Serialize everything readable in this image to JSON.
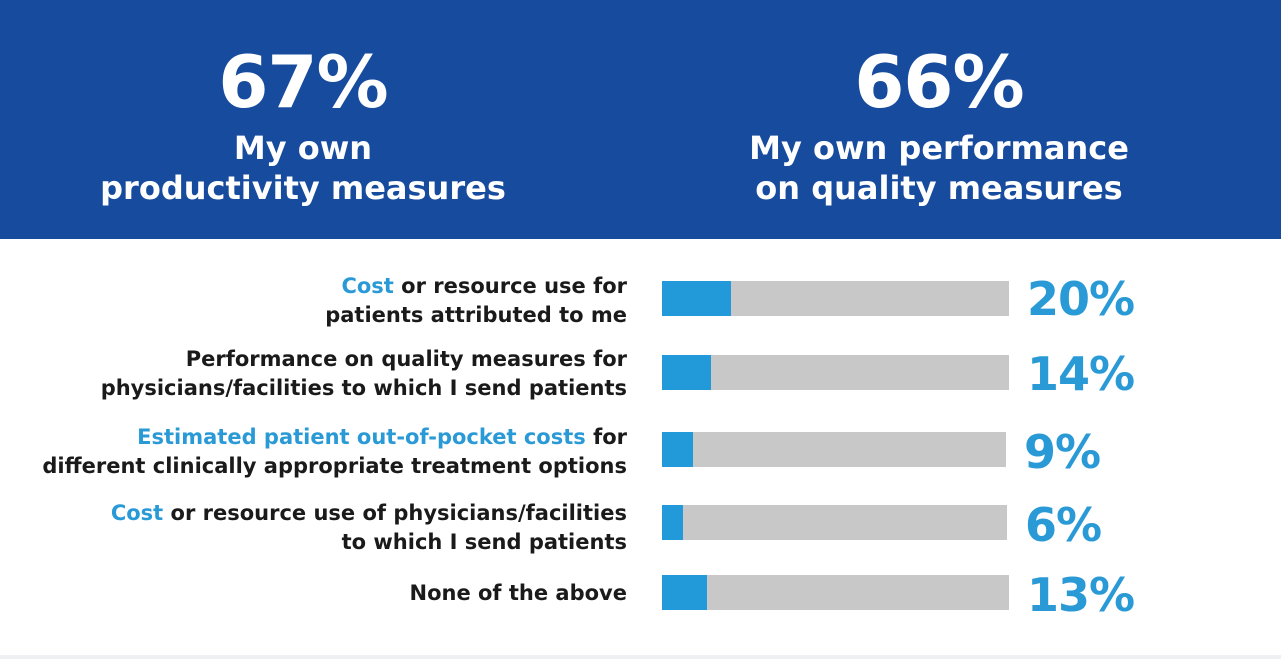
{
  "header": {
    "left": {
      "value": "67%",
      "line1": "My own",
      "line2": "productivity measures"
    },
    "right": {
      "value": "66%",
      "line1": "My own performance",
      "line2": "on quality measures"
    }
  },
  "colors": {
    "band": "#174b9e",
    "accent": "#2a9ad6",
    "track": "#c8c8c8",
    "fill": "#2299d8"
  },
  "chart_data": {
    "type": "bar",
    "orientation": "horizontal",
    "title": "",
    "xlabel": "",
    "ylabel": "",
    "xlim": [
      0,
      100
    ],
    "categories": [
      "Cost or resource use for patients attributed to me",
      "Performance on quality measures for physicians/facilities to which I send patients",
      "Estimated patient out-of-pocket costs for different clinically appropriate treatment options",
      "Cost or resource use of physicians/facilities to which I send patients",
      "None of the above"
    ],
    "values": [
      20,
      14,
      9,
      6,
      13
    ],
    "value_labels": [
      "20%",
      "14%",
      "9%",
      "6%",
      "13%"
    ],
    "rows": [
      {
        "hl": "Cost",
        "l1": " or resource use for",
        "l2": "patients attributed to me"
      },
      {
        "hl": "",
        "l1": "Performance on quality measures for",
        "l2": "physicians/facilities to which I send patients"
      },
      {
        "hl": "Estimated patient out-of-pocket costs",
        "l1": " for",
        "l2": "different clinically appropriate treatment options"
      },
      {
        "hl": "Cost",
        "l1": " or resource use of physicians/facilities",
        "l2": "to which I send patients"
      },
      {
        "hl": "",
        "l1": "None of the above",
        "l2": ""
      }
    ]
  }
}
